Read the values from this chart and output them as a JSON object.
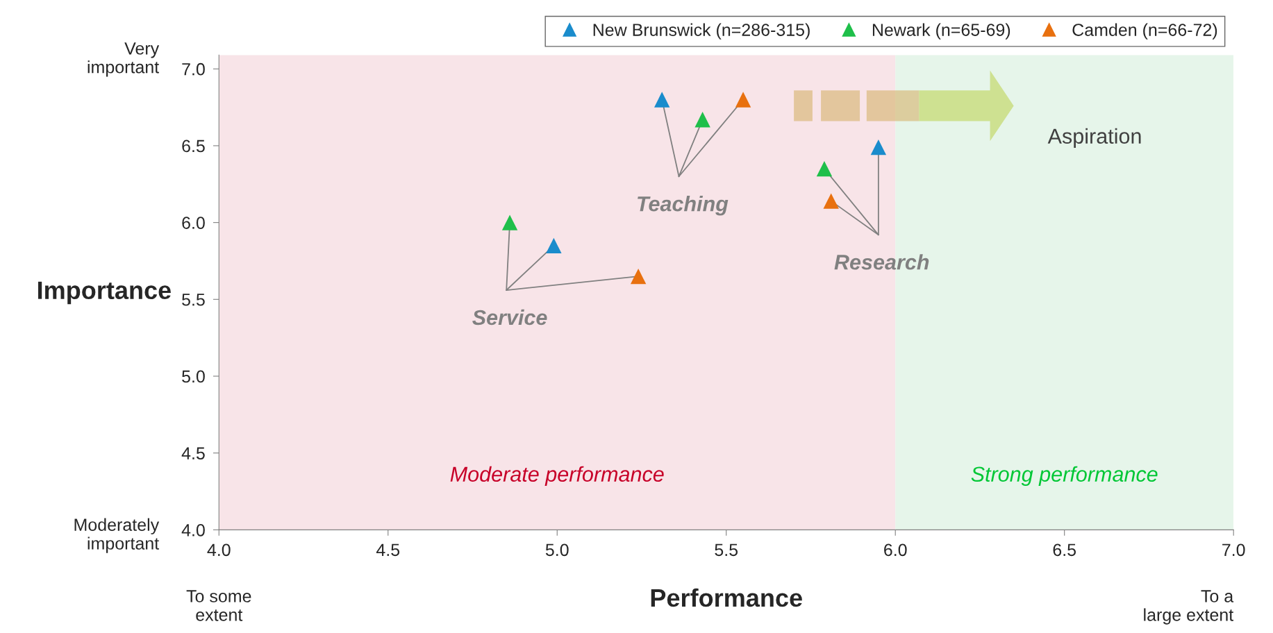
{
  "chart_data": {
    "type": "scatter",
    "xlabel": "Performance",
    "ylabel": "Importance",
    "series": [
      {
        "name": "New Brunswick (n=286-315)",
        "color": "#1a8ccc",
        "x": [
          4.99,
          5.31,
          5.95
        ],
        "values": [
          5.85,
          6.8,
          6.49
        ]
      },
      {
        "name": "Newark (n=65-69)",
        "color": "#1fbf4a",
        "x": [
          4.86,
          5.43,
          5.79
        ],
        "values": [
          6.0,
          6.67,
          6.35
        ]
      },
      {
        "name": "Camden (n=66-72)",
        "color": "#e8700f",
        "x": [
          5.24,
          5.55,
          5.81
        ],
        "values": [
          5.65,
          6.8,
          6.14
        ]
      }
    ],
    "xlim": [
      4.0,
      7.0
    ],
    "ylim": [
      4.0,
      7.09
    ],
    "xticks": [
      {
        "value": 4.0,
        "label": "4.0"
      },
      4.5,
      {
        "value": 5.0,
        "label": "5.0"
      },
      5.5,
      {
        "value": 6.0,
        "label": "6.0"
      },
      6.5,
      {
        "value": 7.0,
        "label": "7.0"
      }
    ],
    "yticks": [
      {
        "value": 4.0,
        "label": "4.0"
      },
      4.5,
      {
        "value": 5.0,
        "label": "5.0"
      },
      5.5,
      {
        "value": 6.0,
        "label": "6.0"
      },
      6.5,
      {
        "value": 7.0,
        "label": "7.0"
      }
    ],
    "bands": [
      {
        "axis": "x",
        "from": 4.0,
        "to": 6.0,
        "label": "Moderate performance",
        "color": "#f8e4e8"
      },
      {
        "axis": "x",
        "from": 6.0,
        "to": 7.0,
        "label": "Strong performance",
        "color": "#e6f5ea"
      }
    ],
    "annotations": [
      {
        "text": "Service",
        "x": 4.99,
        "y": 5.85
      },
      {
        "text": "Teaching",
        "x": 5.31,
        "y": 6.8
      },
      {
        "text": "Research",
        "x": 5.95,
        "y": 6.49
      },
      "Aspiration",
      "Very important",
      "Moderately important",
      "To some extent",
      "To a large extent"
    ],
    "marker": "triangle",
    "grid": false,
    "legend": "top right"
  }
}
